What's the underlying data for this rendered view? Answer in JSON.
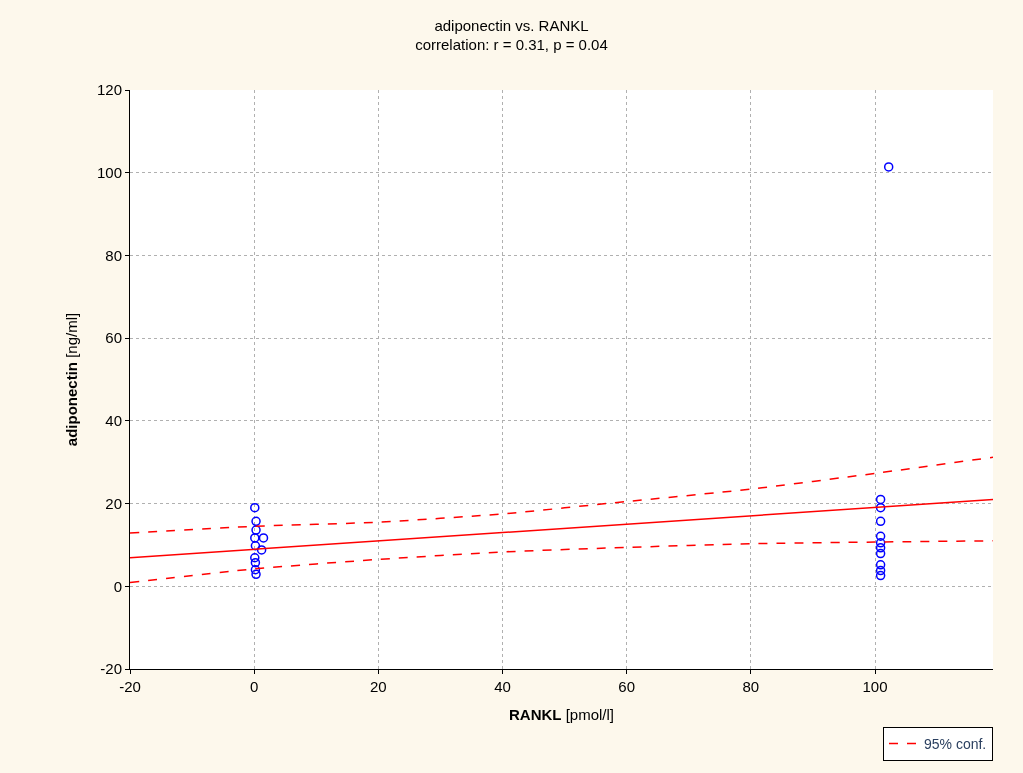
{
  "chart_data": {
    "type": "scatter",
    "title": "adiponectin vs. RANKL",
    "subtitle": "correlation: r = 0.31, p = 0.04",
    "xlabel": "RANKL [pmol/l]",
    "ylabel": "adiponectin [ng/ml]",
    "xlim": [
      -20,
      119
    ],
    "ylim": [
      -20,
      120
    ],
    "xticks": [
      -20,
      0,
      20,
      40,
      60,
      80,
      100
    ],
    "yticks": [
      -20,
      0,
      20,
      40,
      60,
      80,
      100,
      120
    ],
    "grid": true,
    "legend": "bottom right",
    "series": [
      {
        "color": "#0000ff",
        "marker": "circle",
        "x": [
          0.1,
          0.3,
          0.3,
          0.2,
          0.1,
          1.2,
          0.2,
          0.2,
          0.3,
          0.1,
          1.5,
          100.9,
          100.9,
          100.9,
          100.9,
          100.9,
          100.9,
          100.9,
          100.9,
          100.9,
          100.9,
          102.2
        ],
        "values": [
          19,
          15.7,
          13.6,
          9.8,
          6.9,
          8.8,
          5.7,
          4,
          2.9,
          11.7,
          11.7,
          21,
          19,
          15.7,
          12.1,
          10.5,
          9.3,
          7.9,
          5.2,
          3.8,
          2.6,
          101.4
        ]
      },
      {
        "type": "line",
        "color": "#ff0000",
        "line_style": "solid",
        "x": [
          -20,
          119
        ],
        "values": [
          6.9,
          21
        ]
      },
      {
        "type": "line",
        "name": "95% conf.",
        "color": "#ff0000",
        "line_style": "dashed",
        "x": [
          -20,
          0,
          20,
          40,
          60,
          80,
          100,
          119
        ],
        "values": [
          12.9,
          14.5,
          15.5,
          17.5,
          20.5,
          23.5,
          27.3,
          31.2
        ]
      },
      {
        "type": "line",
        "color": "#ff0000",
        "line_style": "dashed",
        "x": [
          -20,
          0,
          20,
          40,
          60,
          80,
          100,
          119
        ],
        "values": [
          0.9,
          4.2,
          6.5,
          8.3,
          9.4,
          10.3,
          10.7,
          11
        ]
      }
    ]
  }
}
